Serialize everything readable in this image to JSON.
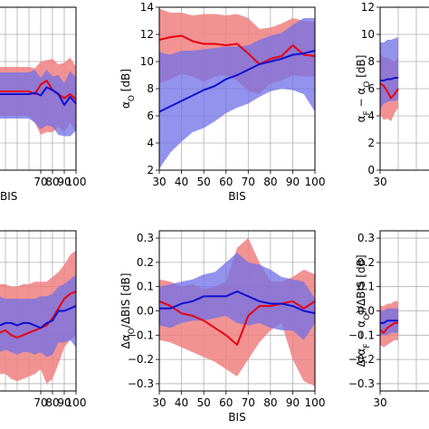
{
  "colors": {
    "deep": "#e8000b",
    "deep_band": "#f08080",
    "light": "#1010d0",
    "light_band": "#6f6fe8",
    "overlap": "#8b4fb0"
  },
  "chart_data": [
    {
      "id": "top-left",
      "type": "line",
      "xlabel": "BIS",
      "ylabel": "",
      "xlim": [
        30,
        100
      ],
      "ylim": [
        2,
        14
      ],
      "x_ticks": [
        70,
        80,
        90,
        100
      ],
      "y_ticks": [],
      "x_tick_labels": [
        "70",
        "80",
        "90",
        "100"
      ],
      "y_tick_labels": [],
      "grid": true,
      "series": [
        {
          "role": "deep",
          "x": [
            30,
            35,
            40,
            45,
            50,
            55,
            60,
            65,
            70,
            75,
            80,
            85,
            90,
            95,
            100
          ],
          "y": [
            7.8,
            7.8,
            7.8,
            7.8,
            7.8,
            7.8,
            7.8,
            7.6,
            8.3,
            8.6,
            7.9,
            7.6,
            7.3,
            7.6,
            7.2
          ],
          "lower": [
            6.0,
            6.0,
            6.0,
            6.0,
            6.0,
            6.0,
            6.0,
            5.5,
            4.6,
            4.8,
            4.8,
            5.2,
            4.8,
            5.5,
            4.8
          ],
          "upper": [
            9.6,
            9.6,
            9.6,
            9.6,
            9.6,
            9.6,
            9.6,
            9.5,
            10.0,
            10.1,
            10.2,
            9.8,
            9.9,
            10.3,
            9.6
          ]
        },
        {
          "role": "light",
          "x": [
            30,
            35,
            40,
            45,
            50,
            55,
            60,
            65,
            70,
            75,
            80,
            85,
            90,
            95,
            100
          ],
          "y": [
            7.6,
            7.6,
            7.6,
            7.6,
            7.6,
            7.6,
            7.6,
            7.7,
            7.5,
            8.1,
            7.9,
            7.6,
            6.8,
            7.4,
            6.9
          ],
          "lower": [
            5.8,
            5.8,
            5.8,
            5.8,
            5.8,
            5.8,
            5.8,
            5.5,
            5.0,
            5.3,
            5.2,
            4.6,
            4.5,
            4.5,
            4.9
          ],
          "upper": [
            9.2,
            9.2,
            9.2,
            9.2,
            9.2,
            9.2,
            9.2,
            9.4,
            8.8,
            9.4,
            8.9,
            9.0,
            8.4,
            9.3,
            8.8
          ]
        }
      ]
    },
    {
      "id": "top-middle",
      "type": "line",
      "xlabel": "BIS",
      "ylabel": "αO [dB]",
      "xlim": [
        30,
        100
      ],
      "ylim": [
        2,
        14
      ],
      "x_ticks": [
        30,
        40,
        50,
        60,
        70,
        80,
        90,
        100
      ],
      "y_ticks": [
        2,
        4,
        6,
        8,
        10,
        12,
        14
      ],
      "x_tick_labels": [
        "30",
        "40",
        "50",
        "60",
        "70",
        "80",
        "90",
        "100"
      ],
      "y_tick_labels": [
        "2",
        "4",
        "6",
        "8",
        "10",
        "12",
        "14"
      ],
      "grid": true,
      "series": [
        {
          "role": "deep",
          "x": [
            30,
            35,
            40,
            45,
            50,
            55,
            60,
            65,
            70,
            75,
            80,
            85,
            90,
            95,
            100
          ],
          "y": [
            11.6,
            11.8,
            11.9,
            11.5,
            11.3,
            11.3,
            11.2,
            11.3,
            10.6,
            9.8,
            10.2,
            10.4,
            11.2,
            10.5,
            10.4
          ],
          "lower": [
            8.4,
            8.7,
            9.1,
            8.9,
            8.5,
            8.9,
            9.0,
            8.6,
            7.8,
            7.6,
            8.4,
            8.6,
            9.0,
            8.9,
            8.9
          ],
          "upper": [
            13.9,
            13.6,
            13.6,
            13.4,
            13.5,
            13.5,
            13.4,
            13.5,
            13.2,
            12.4,
            12.5,
            12.8,
            13.2,
            13.0,
            12.9
          ]
        },
        {
          "role": "light",
          "x": [
            30,
            35,
            40,
            45,
            50,
            55,
            60,
            65,
            70,
            75,
            80,
            85,
            90,
            95,
            100
          ],
          "y": [
            6.3,
            6.7,
            7.1,
            7.5,
            7.9,
            8.2,
            8.7,
            9.0,
            9.4,
            9.8,
            10.0,
            10.2,
            10.5,
            10.6,
            10.8
          ],
          "lower": [
            2.1,
            3.3,
            4.1,
            4.8,
            5.1,
            5.6,
            6.2,
            6.6,
            6.9,
            7.4,
            7.8,
            8.0,
            7.9,
            7.6,
            6.3
          ],
          "upper": [
            10.7,
            10.5,
            10.8,
            10.8,
            10.9,
            11.0,
            11.1,
            11.1,
            11.2,
            11.6,
            11.9,
            12.1,
            12.7,
            13.2,
            13.2
          ]
        }
      ]
    },
    {
      "id": "top-right",
      "type": "line",
      "xlabel": "",
      "ylabel": "αF − αO [dB]",
      "xlim": [
        30,
        100
      ],
      "ylim": [
        0,
        12
      ],
      "x_ticks": [
        30
      ],
      "y_ticks": [
        0,
        2,
        4,
        6,
        8,
        10,
        12
      ],
      "x_tick_labels": [
        "30"
      ],
      "y_tick_labels": [
        "0",
        "2",
        "4",
        "6",
        "8",
        "10",
        "12"
      ],
      "grid": true,
      "series": [
        {
          "role": "deep",
          "x": [
            30,
            32,
            34,
            36,
            38,
            40
          ],
          "y": [
            6.4,
            6.2,
            5.8,
            5.3,
            5.6,
            6.0
          ],
          "lower": [
            4.1,
            3.7,
            3.8,
            3.6,
            4.2,
            4.6
          ],
          "upper": [
            8.6,
            8.3,
            8.3,
            8.1,
            8.0,
            8.3
          ]
        },
        {
          "role": "light",
          "x": [
            30,
            32,
            34,
            36,
            38,
            40
          ],
          "y": [
            6.6,
            6.6,
            6.7,
            6.7,
            6.8,
            6.8
          ],
          "lower": [
            4.5,
            4.9,
            5.0,
            5.1,
            5.1,
            5.2
          ],
          "upper": [
            9.4,
            9.4,
            9.6,
            9.6,
            9.7,
            9.8
          ]
        }
      ]
    },
    {
      "id": "bottom-left",
      "type": "line",
      "xlabel": "",
      "ylabel": "",
      "xlim": [
        30,
        100
      ],
      "ylim": [
        -0.33,
        0.33
      ],
      "x_ticks": [
        70,
        80,
        90,
        100
      ],
      "y_ticks": [],
      "x_tick_labels": [
        "70",
        "80",
        "90",
        "100"
      ],
      "y_tick_labels": [],
      "grid": true,
      "series": [
        {
          "role": "deep",
          "x": [
            30,
            35,
            40,
            45,
            50,
            55,
            60,
            65,
            70,
            75,
            80,
            85,
            90,
            95,
            100
          ],
          "y": [
            -0.08,
            -0.09,
            -0.08,
            -0.1,
            -0.11,
            -0.1,
            -0.09,
            -0.08,
            -0.07,
            -0.06,
            -0.03,
            0.01,
            0.05,
            0.07,
            0.08
          ],
          "lower": [
            -0.25,
            -0.26,
            -0.26,
            -0.28,
            -0.29,
            -0.28,
            -0.27,
            -0.26,
            -0.24,
            -0.3,
            -0.28,
            -0.22,
            -0.15,
            -0.12,
            -0.1
          ],
          "upper": [
            0.12,
            0.11,
            0.11,
            0.1,
            0.1,
            0.11,
            0.11,
            0.12,
            0.12,
            0.12,
            0.14,
            0.16,
            0.19,
            0.23,
            0.25
          ]
        },
        {
          "role": "light",
          "x": [
            30,
            35,
            40,
            45,
            50,
            55,
            60,
            65,
            70,
            75,
            80,
            85,
            90,
            95,
            100
          ],
          "y": [
            -0.06,
            -0.06,
            -0.05,
            -0.05,
            -0.06,
            -0.05,
            -0.05,
            -0.06,
            -0.07,
            -0.05,
            -0.04,
            0.0,
            0.0,
            0.01,
            0.02
          ],
          "lower": [
            -0.17,
            -0.17,
            -0.16,
            -0.17,
            -0.18,
            -0.17,
            -0.17,
            -0.18,
            -0.17,
            -0.19,
            -0.18,
            -0.13,
            -0.13,
            -0.12,
            -0.15
          ],
          "upper": [
            0.06,
            0.06,
            0.05,
            0.05,
            0.05,
            0.05,
            0.05,
            0.05,
            0.06,
            0.06,
            0.07,
            0.1,
            0.11,
            0.13,
            0.15
          ]
        }
      ]
    },
    {
      "id": "bottom-middle",
      "type": "line",
      "xlabel": "BIS",
      "ylabel": "ΔαO/ΔBIS [dB]",
      "xlim": [
        30,
        100
      ],
      "ylim": [
        -0.33,
        0.33
      ],
      "x_ticks": [
        30,
        40,
        50,
        60,
        70,
        80,
        90,
        100
      ],
      "y_ticks": [
        -0.3,
        -0.2,
        -0.1,
        0.0,
        0.1,
        0.2,
        0.3
      ],
      "x_tick_labels": [
        "30",
        "40",
        "50",
        "60",
        "70",
        "80",
        "90",
        "100"
      ],
      "y_tick_labels": [
        "−0.3",
        "−0.2",
        "−0.1",
        "0.0",
        "0.1",
        "0.2",
        "0.3"
      ],
      "grid": true,
      "series": [
        {
          "role": "deep",
          "x": [
            30,
            35,
            40,
            45,
            50,
            55,
            60,
            65,
            70,
            75,
            80,
            85,
            90,
            95,
            100
          ],
          "y": [
            0.04,
            0.02,
            -0.01,
            -0.02,
            -0.04,
            -0.07,
            -0.1,
            -0.14,
            -0.02,
            0.02,
            0.02,
            0.03,
            0.04,
            0.01,
            0.04
          ],
          "lower": [
            -0.12,
            -0.13,
            -0.15,
            -0.17,
            -0.19,
            -0.21,
            -0.24,
            -0.27,
            -0.2,
            -0.13,
            -0.08,
            -0.05,
            -0.2,
            -0.29,
            -0.31
          ],
          "upper": [
            0.13,
            0.12,
            0.1,
            0.11,
            0.09,
            0.1,
            0.12,
            0.26,
            0.3,
            0.2,
            0.12,
            0.12,
            0.14,
            0.17,
            0.15
          ]
        },
        {
          "role": "light",
          "x": [
            30,
            35,
            40,
            45,
            50,
            55,
            60,
            65,
            70,
            75,
            80,
            85,
            90,
            95,
            100
          ],
          "y": [
            0.01,
            0.01,
            0.03,
            0.04,
            0.06,
            0.06,
            0.06,
            0.08,
            0.06,
            0.04,
            0.03,
            0.03,
            0.02,
            0.0,
            -0.01
          ],
          "lower": [
            -0.06,
            -0.07,
            -0.05,
            -0.04,
            -0.04,
            -0.03,
            -0.02,
            -0.05,
            -0.06,
            -0.05,
            -0.07,
            -0.08,
            -0.08,
            -0.12,
            -0.05
          ],
          "upper": [
            0.1,
            0.11,
            0.12,
            0.13,
            0.15,
            0.16,
            0.2,
            0.24,
            0.2,
            0.19,
            0.17,
            0.14,
            0.13,
            0.12,
            0.05
          ]
        }
      ]
    },
    {
      "id": "bottom-right",
      "type": "line",
      "xlabel": "",
      "ylabel": "Δ(αF − αO)/ΔBIS [dB]",
      "xlim": [
        30,
        100
      ],
      "ylim": [
        -0.33,
        0.33
      ],
      "x_ticks": [
        30
      ],
      "y_ticks": [
        -0.3,
        -0.2,
        -0.1,
        0.0,
        0.1,
        0.2,
        0.3
      ],
      "x_tick_labels": [
        "30"
      ],
      "y_tick_labels": [
        "−0.3",
        "−0.2",
        "−0.1",
        "0.0",
        "0.1",
        "0.2",
        "0.3"
      ],
      "grid": true,
      "series": [
        {
          "role": "deep",
          "x": [
            30,
            32,
            34,
            36,
            38,
            40
          ],
          "y": [
            -0.08,
            -0.09,
            -0.07,
            -0.06,
            -0.05,
            -0.05
          ],
          "lower": [
            -0.14,
            -0.15,
            -0.14,
            -0.13,
            -0.12,
            -0.12
          ],
          "upper": [
            0.02,
            0.02,
            0.03,
            0.03,
            0.04,
            0.04
          ]
        },
        {
          "role": "light",
          "x": [
            30,
            32,
            34,
            36,
            38,
            40
          ],
          "y": [
            -0.05,
            -0.05,
            -0.04,
            -0.04,
            -0.04,
            -0.04
          ],
          "lower": [
            -0.1,
            -0.1,
            -0.1,
            -0.09,
            -0.09,
            -0.09
          ],
          "upper": [
            0.0,
            0.0,
            0.01,
            0.01,
            0.01,
            0.01
          ]
        }
      ]
    }
  ]
}
